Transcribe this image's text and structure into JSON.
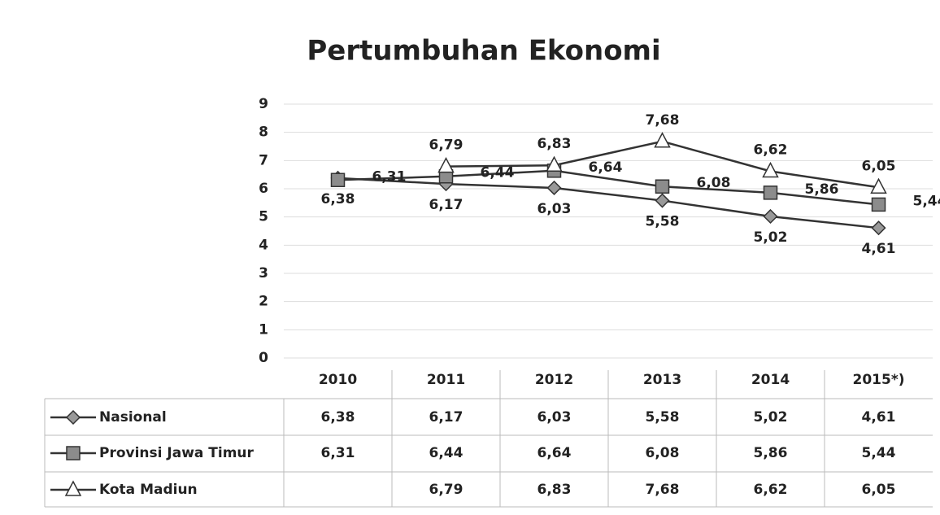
{
  "chart_data": {
    "type": "line",
    "title": "Pertumbuhan Ekonomi",
    "categories": [
      "2010",
      "2011",
      "2012",
      "2013",
      "2014",
      "2015*)"
    ],
    "series": [
      {
        "name": "Nasional",
        "color": "#999999",
        "marker": "diamond",
        "values": [
          6.38,
          6.17,
          6.03,
          5.58,
          5.02,
          4.61
        ],
        "value_labels": [
          "6,38",
          "6,17",
          "6,03",
          "5,58",
          "5,02",
          "4,61"
        ]
      },
      {
        "name": "Provinsi Jawa Timur",
        "color": "#8c8c8c",
        "marker": "square",
        "values": [
          6.31,
          6.44,
          6.64,
          6.08,
          5.86,
          5.44
        ],
        "value_labels": [
          "6,31",
          "6,44",
          "6,64",
          "6,08",
          "5,86",
          "5,44"
        ]
      },
      {
        "name": "Kota Madiun",
        "color": "#ffffff",
        "marker": "triangle",
        "values": [
          null,
          6.79,
          6.83,
          7.68,
          6.62,
          6.05
        ],
        "value_labels": [
          null,
          "6,79",
          "6,83",
          "7,68",
          "6,62",
          "6,05"
        ]
      }
    ],
    "ylim": [
      0,
      9
    ],
    "yticks": [
      0,
      1,
      2,
      3,
      4,
      5,
      6,
      7,
      8,
      9
    ],
    "grid": true
  }
}
